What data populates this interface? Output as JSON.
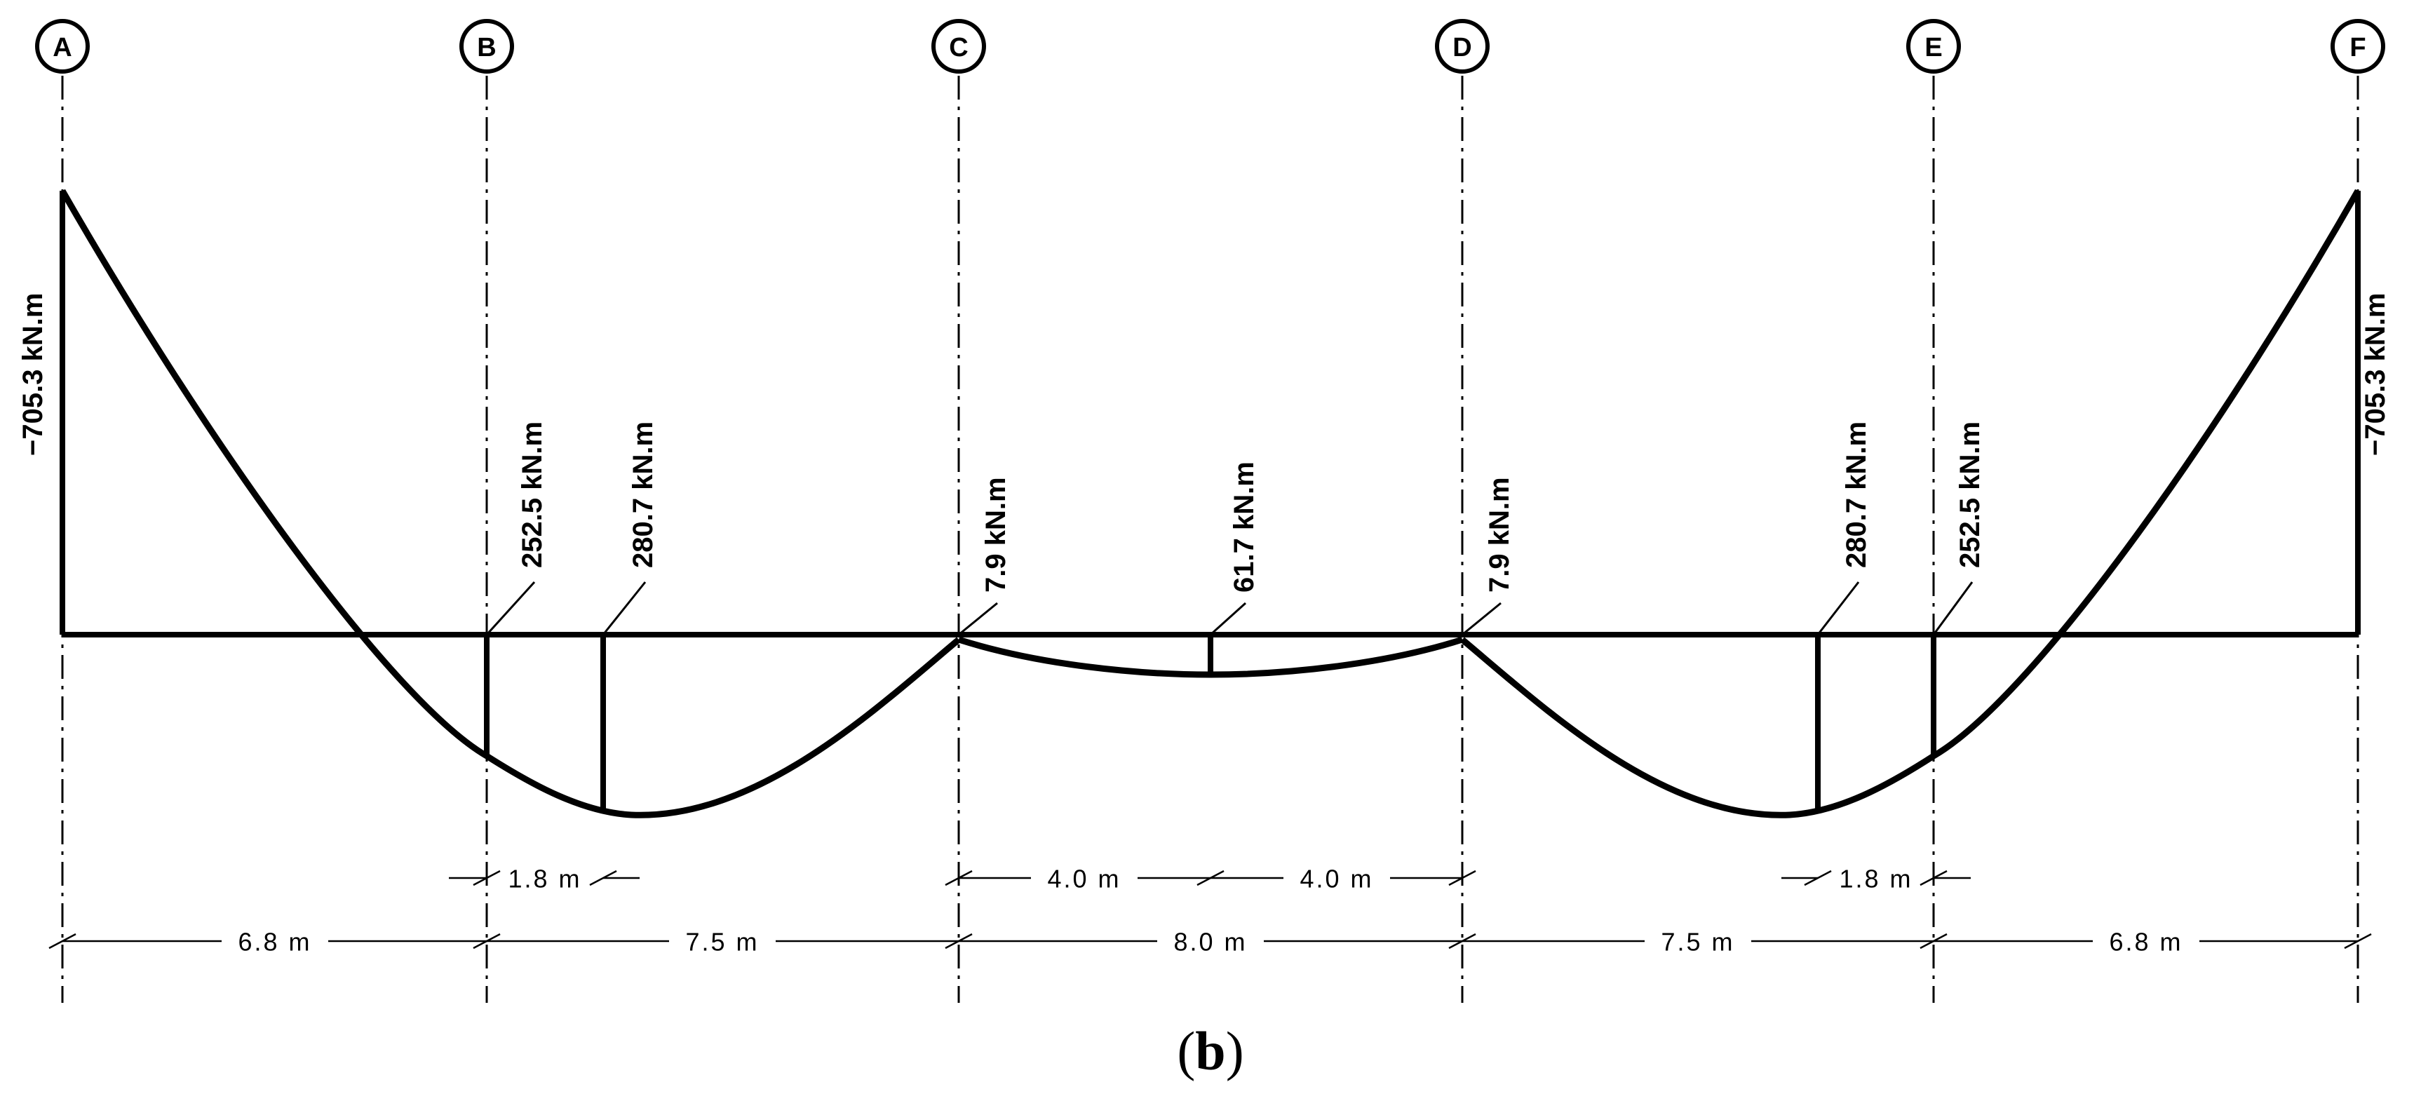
{
  "axes": [
    "A",
    "B",
    "C",
    "D",
    "E",
    "F"
  ],
  "moment_labels": {
    "support_a": "−705.3 kN.m",
    "support_f": "−705.3 kN.m",
    "b_face": "252.5 kN.m",
    "span1_max": "280.7 kN.m",
    "c": "7.9 kN.m",
    "mid": "61.7 kN.m",
    "d": "7.9 kN.m",
    "span5_max": "280.7 kN.m",
    "e_face": "252.5 kN.m"
  },
  "dimensions": {
    "span_ab": "6.8 m",
    "span_bc": "7.5 m",
    "span_cd": "8.0 m",
    "span_de": "7.5 m",
    "span_ef": "6.8 m",
    "offset_left": "1.8 m",
    "offset_right": "1.8 m",
    "half_left": "4.0 m",
    "half_right": "4.0 m"
  },
  "caption": {
    "open": "(",
    "letter": "b",
    "close": ")"
  }
}
